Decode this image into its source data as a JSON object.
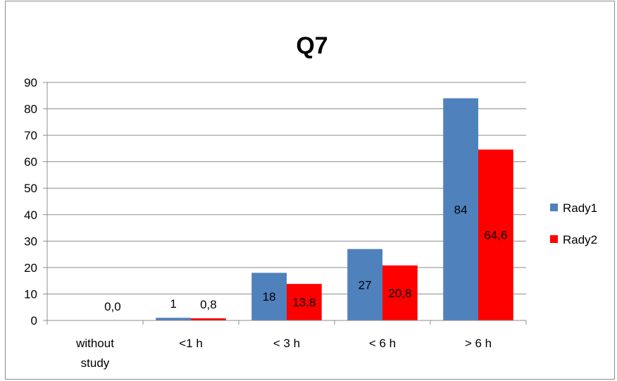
{
  "chart_data": {
    "type": "bar",
    "title": "Q7",
    "xlabel": "",
    "ylabel": "",
    "ylim": [
      0,
      90
    ],
    "yticks": [
      0,
      10,
      20,
      30,
      40,
      50,
      60,
      70,
      80,
      90
    ],
    "grid": true,
    "legend_position": "right",
    "categories": [
      [
        "without",
        "study"
      ],
      [
        "<1 h"
      ],
      [
        "< 3 h"
      ],
      [
        "< 6 h"
      ],
      [
        "> 6 h"
      ]
    ],
    "series": [
      {
        "name": "Rady1",
        "color": "#4f81bd",
        "values": [
          0,
          1,
          18,
          27,
          84
        ],
        "labels": [
          "",
          "1",
          "18",
          "27",
          "84"
        ]
      },
      {
        "name": "Rady2",
        "color": "#ff0000",
        "values": [
          0,
          0.8,
          13.8,
          20.8,
          64.6
        ],
        "labels": [
          "0,0",
          "0,8",
          "13,8",
          "20,8",
          "64,6"
        ]
      }
    ]
  }
}
